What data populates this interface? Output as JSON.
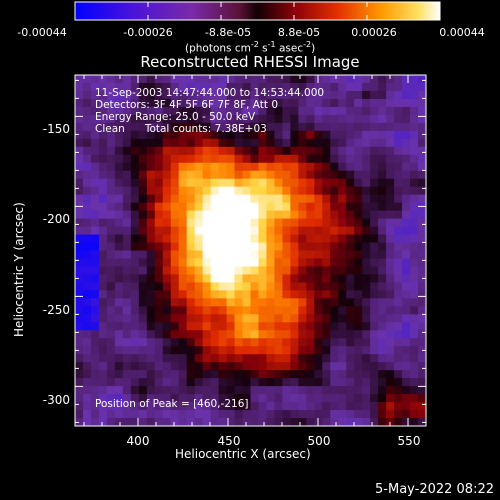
{
  "colorbar": {
    "ticks": [
      "-0.00044",
      "-0.00026",
      "-8.8e-05",
      "8.8e-05",
      "0.00026",
      "0.00044"
    ],
    "units_text": "(photons cm",
    "units_sup1": "-2",
    "units_mid": " s",
    "units_sup2": "-1",
    "units_mid2": " asec",
    "units_sup3": "-2",
    "units_end": ")"
  },
  "title": "Reconstructed RHESSI Image",
  "annotations": {
    "time": "11-Sep-2003 14:47:44.000 to 14:53:44.000",
    "detectors": "Detectors: 3F 4F 5F 6F 7F 8F, Att 0",
    "energy": "Energy Range: 25.0 - 50.0 keV",
    "clean": "Clean      Total counts: 7.38E+03",
    "peak": "Position of Peak = [460,-216]"
  },
  "axes": {
    "xlabel": "Heliocentric X (arcsec)",
    "ylabel": "Heliocentric Y (arcsec)",
    "xticks": [
      "400",
      "450",
      "500",
      "550"
    ],
    "yticks": [
      "-150",
      "-200",
      "-250",
      "-300"
    ],
    "xrange": [
      365,
      560
    ],
    "yrange": [
      -322,
      -127
    ]
  },
  "peak_position": [
    460,
    -216
  ],
  "timestamp": "5-May-2022 08:22",
  "colors": {
    "background": "#000000",
    "text": "#ffffff"
  }
}
